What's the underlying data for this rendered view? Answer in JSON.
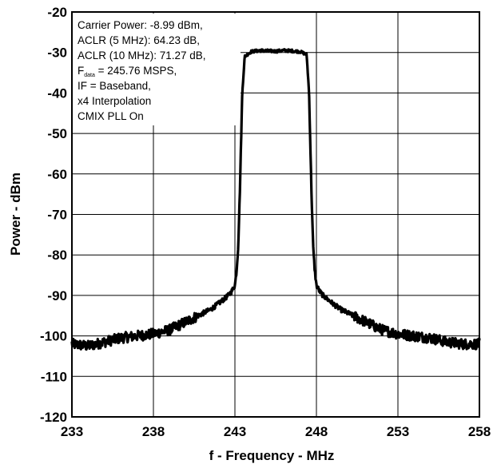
{
  "chart_data": {
    "type": "line",
    "title": "",
    "xlabel": "f - Frequency - MHz",
    "ylabel": "Power - dBm",
    "xlim": [
      233,
      258
    ],
    "ylim": [
      -120,
      -20
    ],
    "xticks": [
      233,
      238,
      243,
      248,
      253,
      258
    ],
    "yticks": [
      -20,
      -30,
      -40,
      -50,
      -60,
      -70,
      -80,
      -90,
      -100,
      -110,
      -120
    ],
    "x_tick_labels": [
      "233",
      "238",
      "243",
      "248",
      "253",
      "258"
    ],
    "y_tick_labels": [
      "-20",
      "-30",
      "-40",
      "-50",
      "-60",
      "-70",
      "-80",
      "-90",
      "-100",
      "-110",
      "-120"
    ],
    "grid": true,
    "annotation": {
      "lines": [
        "Carrier Power: -8.99 dBm,",
        "ACLR (5 MHz): 64.23 dB,",
        "ACLR (10 MHz): 71.27 dB,"
      ],
      "fdata_prefix": "F",
      "fdata_subscript": "data",
      "fdata_rest": " = 245.76 MSPS,",
      "lines_after": [
        "IF = Baseband,",
        "x4 Interpolation",
        "CMIX  PLL On"
      ]
    },
    "series": [
      {
        "x": [
          233.0,
          234.0,
          235.0,
          236.0,
          237.0,
          238.0,
          238.5,
          239.0,
          239.5,
          240.0,
          240.5,
          241.0,
          241.5,
          242.0,
          242.3,
          242.6,
          242.8,
          243.0,
          243.1,
          243.2,
          243.3,
          243.45,
          243.6,
          244.0,
          244.5,
          245.0,
          245.5,
          246.0,
          246.5,
          247.0,
          247.4,
          247.55,
          247.7,
          247.8,
          247.9,
          248.0,
          248.2,
          248.4,
          248.7,
          249.0,
          249.5,
          250.0,
          250.5,
          251.0,
          251.5,
          252.0,
          253.0,
          254.0,
          255.0,
          256.0,
          257.0,
          258.0
        ],
        "y": [
          -102,
          -102.5,
          -101.5,
          -100.5,
          -100,
          -99.5,
          -99,
          -98.5,
          -97.5,
          -96.5,
          -95.5,
          -94.5,
          -93.5,
          -92,
          -91,
          -90,
          -89,
          -87.5,
          -84,
          -78,
          -65,
          -40,
          -31,
          -29.8,
          -29.5,
          -29.6,
          -29.7,
          -29.5,
          -29.6,
          -29.8,
          -30.5,
          -40,
          -65,
          -78,
          -84,
          -87.5,
          -89,
          -90,
          -91,
          -92,
          -93.5,
          -94.5,
          -95.5,
          -96.5,
          -97.5,
          -98.5,
          -99.5,
          -100,
          -100.5,
          -101.5,
          -102,
          -102
        ]
      }
    ]
  }
}
